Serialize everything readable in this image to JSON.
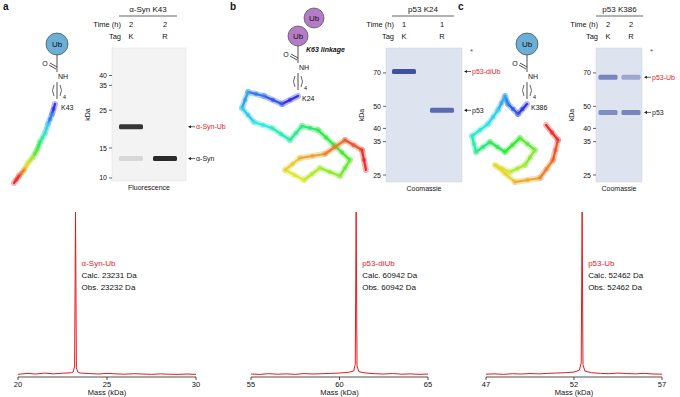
{
  "chart_data": [
    {
      "type": "line",
      "x_label": "Mass (kDa)",
      "xlim": [
        20,
        30
      ],
      "xticks": [
        20,
        25,
        30
      ],
      "ylim": [
        0,
        100
      ],
      "tick_labels": "x",
      "color": "#e41a1c",
      "annotations": [
        "α-Syn-Ub",
        "Calc. 23231 Da",
        "Obs. 23232 Da"
      ],
      "x": [
        20,
        20.5,
        21,
        21.5,
        22,
        22.5,
        23,
        23.1,
        23.18,
        23.232,
        23.28,
        23.36,
        23.5,
        24,
        24.5,
        25,
        25.5,
        26,
        26.5,
        27,
        27.5,
        28,
        28.5,
        29,
        29.5,
        30
      ],
      "values": [
        1,
        1.6,
        1.2,
        1.8,
        1.3,
        1.7,
        2,
        2.5,
        6,
        100,
        5,
        2.4,
        1.8,
        1.5,
        1.2,
        1.6,
        1.3,
        1.1,
        1.4,
        1.2,
        1,
        1.3,
        1.1,
        1,
        1.2,
        1
      ]
    },
    {
      "type": "line",
      "x_label": "Mass (kDa)",
      "xlim": [
        55,
        65
      ],
      "xticks": [
        55,
        60,
        65
      ],
      "ylim": [
        0,
        100
      ],
      "tick_labels": "x",
      "color": "#e41a1c",
      "annotations": [
        "p53-diUb",
        "Calc. 60942 Da",
        "Obs. 60942 Da"
      ],
      "x": [
        55,
        55.5,
        56,
        56.5,
        57,
        57.5,
        58,
        58.5,
        59,
        59.5,
        60,
        60.5,
        60.8,
        60.89,
        60.942,
        60.99,
        61.1,
        61.5,
        62,
        62.5,
        63,
        63.5,
        64,
        64.5,
        65
      ],
      "values": [
        1.2,
        1,
        1.4,
        1.1,
        1.3,
        1,
        1.5,
        1.2,
        1.4,
        1.6,
        1.8,
        2.2,
        3,
        7,
        100,
        6,
        2.6,
        1.8,
        1.4,
        1.2,
        1.5,
        1.1,
        1.3,
        1,
        1.2
      ]
    },
    {
      "type": "line",
      "x_label": "Mass (kDa)",
      "xlim": [
        47,
        57
      ],
      "xticks": [
        47,
        52,
        57
      ],
      "ylim": [
        0,
        100
      ],
      "tick_labels": "x",
      "color": "#e41a1c",
      "annotations": [
        "p53-Ub",
        "Calc. 52462 Da",
        "Obs. 52462 Da"
      ],
      "x": [
        47,
        47.5,
        48,
        48.5,
        49,
        49.5,
        50,
        50.5,
        51,
        51.5,
        52,
        52.3,
        52.41,
        52.462,
        52.51,
        52.62,
        53,
        53.5,
        54,
        54.5,
        55,
        55.5,
        56,
        56.5,
        57
      ],
      "values": [
        1.1,
        1.3,
        1,
        1.4,
        1.2,
        1.5,
        1.3,
        1.6,
        1.8,
        2,
        2.4,
        3.5,
        8,
        100,
        7,
        3,
        2,
        1.6,
        1.4,
        1.8,
        1.5,
        1.3,
        1.6,
        1.2,
        1.1
      ]
    }
  ],
  "panels": [
    {
      "letter": "a",
      "structure": {
        "ubiquitins": [
          {
            "text": "Ub",
            "color": "#6baed6"
          }
        ],
        "carbonyl": "O",
        "amine": "NH",
        "repeat": "4",
        "residue": "K43"
      },
      "gel": {
        "title": "α-Syn K43",
        "rows": [
          {
            "label": "Time (h)",
            "values": [
              2,
              2
            ]
          },
          {
            "label": "Tag",
            "values": [
              "K",
              "R"
            ]
          }
        ],
        "axis_label": "kDa",
        "kda_range": [
          58,
          9.6
        ],
        "ticks": [
          40,
          35,
          25,
          15,
          10
        ],
        "style": "fluorescence",
        "footer": "Fluorescence",
        "bands": [
          {
            "lane": 0,
            "kda": 20,
            "intensity": 0.85
          },
          {
            "lane": 0,
            "kda": 13,
            "intensity": 0.12
          },
          {
            "lane": 1,
            "kda": 13,
            "intensity": 0.9
          }
        ],
        "labels": [
          {
            "text": "α-Syn-Ub",
            "kda": 20,
            "color": "#e41a1c"
          },
          {
            "text": "α-Syn",
            "kda": 13,
            "color": "#222222"
          }
        ]
      }
    },
    {
      "letter": "b",
      "structure": {
        "ubiquitins": [
          {
            "text": "Ub",
            "color": "#b47cc7"
          },
          {
            "text": "Ub",
            "color": "#b47cc7"
          }
        ],
        "linkage": "K63 linkage",
        "carbonyl": "O",
        "amine": "NH",
        "repeat": "4",
        "residue": "K24"
      },
      "gel": {
        "title": "p53 K24",
        "rows": [
          {
            "label": "Time (h)",
            "values": [
              1,
              1
            ]
          },
          {
            "label": "Tag",
            "values": [
              "K",
              "R"
            ]
          }
        ],
        "axis_label": "kDa",
        "kda_range": [
          90,
          23.3
        ],
        "ticks": [
          70,
          50,
          40,
          35,
          25
        ],
        "style": "coomassie",
        "footer": "Coomassie",
        "asterisk": "*",
        "bands": [
          {
            "lane": 0,
            "kda": 71,
            "intensity": 0.85
          },
          {
            "lane": 1,
            "kda": 48,
            "intensity": 0.7
          }
        ],
        "labels": [
          {
            "text": "p53-diUb",
            "kda": 71,
            "color": "#e41a1c"
          },
          {
            "text": "p53",
            "kda": 48,
            "color": "#222222"
          }
        ]
      }
    },
    {
      "letter": "c",
      "structure": {
        "ubiquitins": [
          {
            "text": "Ub",
            "color": "#6baed6"
          }
        ],
        "carbonyl": "O",
        "amine": "NH",
        "repeat": "4",
        "residue": "K386"
      },
      "gel": {
        "title": "p53 K386",
        "rows": [
          {
            "label": "Time (h)",
            "values": [
              2,
              2
            ]
          },
          {
            "label": "Tag",
            "values": [
              "K",
              "R"
            ]
          }
        ],
        "axis_label": "kDa",
        "kda_range": [
          90,
          23.3
        ],
        "ticks": [
          70,
          50,
          40,
          35,
          25
        ],
        "style": "coomassie",
        "footer": "Coomassie",
        "asterisk": "*",
        "bands": [
          {
            "lane": 0,
            "kda": 67,
            "intensity": 0.55
          },
          {
            "lane": 0,
            "kda": 47,
            "intensity": 0.5
          },
          {
            "lane": 1,
            "kda": 67,
            "intensity": 0.35
          },
          {
            "lane": 1,
            "kda": 47,
            "intensity": 0.55
          }
        ],
        "labels": [
          {
            "text": "p53-Ub",
            "kda": 67,
            "color": "#e41a1c"
          },
          {
            "text": "p53",
            "kda": 47,
            "color": "#222222"
          }
        ]
      }
    }
  ]
}
